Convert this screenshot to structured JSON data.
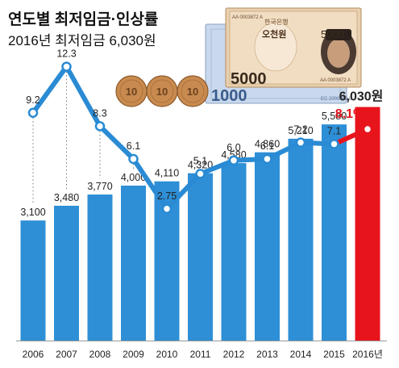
{
  "chart_data": {
    "type": "bar",
    "title": "연도별 최저임금·인상률",
    "subtitle": "2016년 최저임금 6,030원",
    "categories": [
      "2006",
      "2007",
      "2008",
      "2009",
      "2010",
      "2011",
      "2012",
      "2013",
      "2014",
      "2015",
      "2016년"
    ],
    "series": [
      {
        "kind": "bar",
        "values": [
          3100,
          3480,
          3770,
          4000,
          4110,
          4320,
          4580,
          4860,
          5210,
          5580,
          6030
        ],
        "labels": [
          "3,100",
          "3,480",
          "3,770",
          "4,000",
          "4,110",
          "4,320",
          "4,580",
          "4,860",
          "5,210",
          "5,580",
          "6,030원"
        ]
      },
      {
        "kind": "line",
        "values": [
          9.2,
          12.3,
          8.3,
          6.1,
          2.75,
          5.1,
          6.0,
          6.1,
          7.2,
          7.1,
          8.1
        ],
        "labels": [
          "9.2",
          "12.3",
          "8.3",
          "6.1",
          "2.75",
          "5.1",
          "6.0",
          "6.1",
          "7.2",
          "7.1",
          "8.1%"
        ]
      }
    ],
    "grid": false,
    "colors": {
      "bar": "#2e8fd6",
      "bar_highlight": "#e8141c",
      "line": "#2a8bd4",
      "line_highlight": "#e8141c",
      "marker_fill": "#ffffff",
      "text": "#222222",
      "dots": "#777777",
      "banknote_green": "#cfe0b8",
      "banknote_blue": "#c9d8ec",
      "coin": "#c88a4e"
    },
    "decoration": {
      "note_5000": {
        "value": "5000",
        "bank": "한국은행",
        "name": "오천원",
        "serial": "AA 0003872 A"
      },
      "note_1000": {
        "value": "1000",
        "serial": "EC 2000000 L"
      },
      "coin_value": "10"
    }
  }
}
